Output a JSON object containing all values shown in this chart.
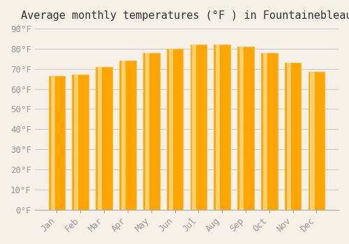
{
  "title": "Average monthly temperatures (°F ) in Fountainebleau",
  "months": [
    "Jan",
    "Feb",
    "Mar",
    "Apr",
    "May",
    "Jun",
    "Jul",
    "Aug",
    "Sep",
    "Oct",
    "Nov",
    "Dec"
  ],
  "values": [
    66.5,
    67.0,
    71.0,
    74.0,
    78.0,
    80.0,
    82.0,
    82.0,
    81.0,
    78.0,
    73.0,
    68.5
  ],
  "bar_color": "#FFA500",
  "bar_edge_color": "#FFB833",
  "background_color": "#F5F0E8",
  "grid_color": "#CCCCCC",
  "ylim": [
    0,
    90
  ],
  "yticks": [
    0,
    10,
    20,
    30,
    40,
    50,
    60,
    70,
    80,
    90
  ],
  "ylabel_suffix": "°F",
  "title_fontsize": 11,
  "tick_fontsize": 9,
  "font_family": "monospace"
}
